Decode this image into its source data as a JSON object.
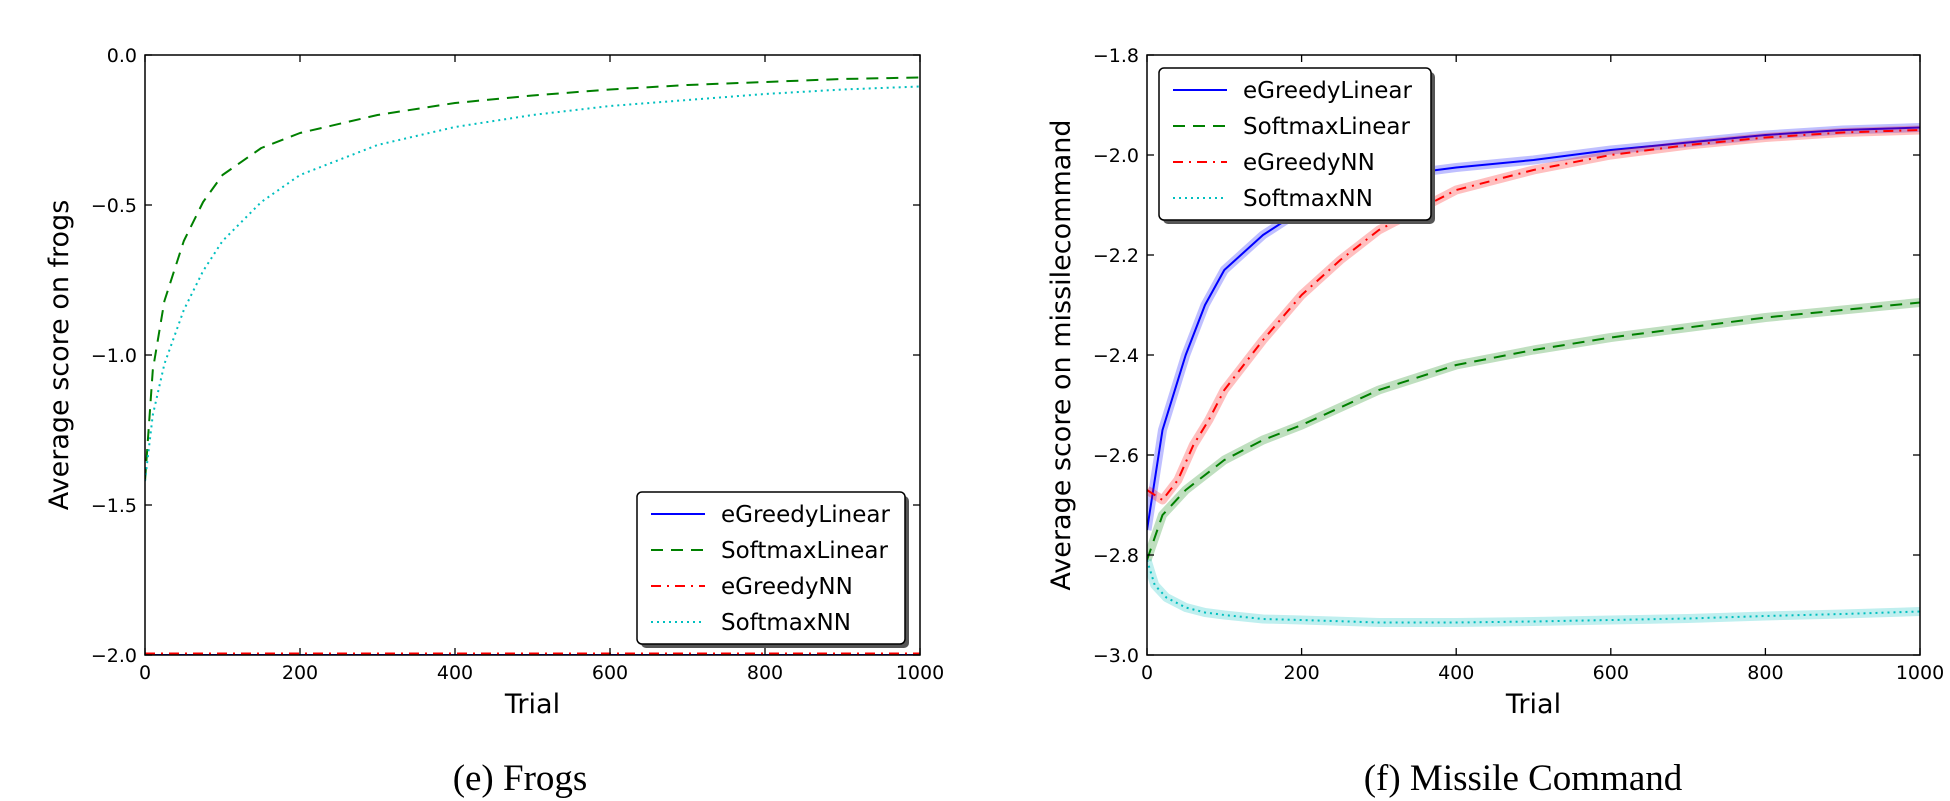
{
  "chart_data": [
    {
      "type": "line",
      "caption": "(e) Frogs",
      "xlabel": "Trial",
      "ylabel": "Average score on frogs",
      "xlim": [
        0,
        1000
      ],
      "ylim": [
        -2.0,
        0.0
      ],
      "xticks": [
        "0",
        "200",
        "400",
        "600",
        "800",
        "1000"
      ],
      "yticks": [
        "0.0",
        "−0.5",
        "−1.0",
        "−1.5",
        "−2.0"
      ],
      "xtick_values": [
        0,
        200,
        400,
        600,
        800,
        1000
      ],
      "ytick_values": [
        0.0,
        -0.5,
        -1.0,
        -1.5,
        -2.0
      ],
      "legend_position": "lower-right",
      "series": [
        {
          "name": "eGreedyLinear",
          "color": "#0000ff",
          "style": "solid",
          "x": [
            0,
            1000
          ],
          "y": [
            -2.0,
            -2.0
          ]
        },
        {
          "name": "SoftmaxLinear",
          "color": "#008000",
          "style": "dashed",
          "x": [
            0,
            10,
            25,
            50,
            75,
            100,
            150,
            200,
            300,
            400,
            500,
            600,
            700,
            800,
            900,
            1000
          ],
          "y": [
            -1.42,
            -1.05,
            -0.82,
            -0.62,
            -0.49,
            -0.4,
            -0.31,
            -0.26,
            -0.2,
            -0.16,
            -0.135,
            -0.115,
            -0.1,
            -0.09,
            -0.08,
            -0.075
          ]
        },
        {
          "name": "eGreedyNN",
          "color": "#ff0000",
          "style": "dashdot",
          "x": [
            0,
            1000
          ],
          "y": [
            -1.995,
            -1.995
          ]
        },
        {
          "name": "SoftmaxNN",
          "color": "#00bfbf",
          "style": "dotted",
          "x": [
            0,
            10,
            25,
            50,
            75,
            100,
            150,
            200,
            300,
            400,
            500,
            600,
            700,
            800,
            900,
            1000
          ],
          "y": [
            -1.42,
            -1.2,
            -1.03,
            -0.85,
            -0.72,
            -0.62,
            -0.49,
            -0.4,
            -0.3,
            -0.24,
            -0.2,
            -0.17,
            -0.15,
            -0.13,
            -0.115,
            -0.105
          ]
        }
      ]
    },
    {
      "type": "line",
      "caption": "(f) Missile Command",
      "xlabel": "Trial",
      "ylabel": "Average score on missilecommand",
      "xlim": [
        0,
        1000
      ],
      "ylim": [
        -3.0,
        -1.8
      ],
      "xticks": [
        "0",
        "200",
        "400",
        "600",
        "800",
        "1000"
      ],
      "yticks": [
        "−1.8",
        "−2.0",
        "−2.2",
        "−2.4",
        "−2.6",
        "−2.8",
        "−3.0"
      ],
      "xtick_values": [
        0,
        200,
        400,
        600,
        800,
        1000
      ],
      "ytick_values": [
        -1.8,
        -2.0,
        -2.2,
        -2.4,
        -2.6,
        -2.8,
        -3.0
      ],
      "legend_position": "upper-left",
      "series": [
        {
          "name": "eGreedyLinear",
          "color": "#0000ff",
          "style": "solid",
          "x": [
            0,
            20,
            50,
            75,
            100,
            150,
            200,
            250,
            300,
            350,
            400,
            500,
            600,
            700,
            800,
            900,
            1000
          ],
          "y": [
            -2.75,
            -2.55,
            -2.4,
            -2.3,
            -2.23,
            -2.16,
            -2.11,
            -2.08,
            -2.05,
            -2.035,
            -2.025,
            -2.01,
            -1.99,
            -1.975,
            -1.96,
            -1.95,
            -1.945
          ]
        },
        {
          "name": "SoftmaxLinear",
          "color": "#008000",
          "style": "dashed",
          "x": [
            0,
            20,
            50,
            100,
            150,
            200,
            300,
            400,
            500,
            600,
            700,
            800,
            900,
            1000
          ],
          "y": [
            -2.81,
            -2.72,
            -2.67,
            -2.61,
            -2.57,
            -2.54,
            -2.47,
            -2.42,
            -2.39,
            -2.365,
            -2.345,
            -2.325,
            -2.31,
            -2.295
          ]
        },
        {
          "name": "eGreedyNN",
          "color": "#ff0000",
          "style": "dashdot",
          "x": [
            0,
            20,
            40,
            60,
            80,
            100,
            150,
            200,
            250,
            300,
            400,
            500,
            600,
            700,
            800,
            900,
            1000
          ],
          "y": [
            -2.67,
            -2.69,
            -2.65,
            -2.58,
            -2.53,
            -2.47,
            -2.37,
            -2.28,
            -2.21,
            -2.15,
            -2.07,
            -2.03,
            -2.0,
            -1.98,
            -1.965,
            -1.955,
            -1.95
          ]
        },
        {
          "name": "SoftmaxNN",
          "color": "#00bfbf",
          "style": "dotted",
          "x": [
            0,
            10,
            25,
            50,
            75,
            100,
            150,
            200,
            300,
            400,
            500,
            600,
            700,
            800,
            900,
            1000
          ],
          "y": [
            -2.81,
            -2.86,
            -2.885,
            -2.905,
            -2.915,
            -2.92,
            -2.928,
            -2.93,
            -2.935,
            -2.935,
            -2.933,
            -2.93,
            -2.927,
            -2.922,
            -2.918,
            -2.913
          ]
        }
      ]
    }
  ]
}
